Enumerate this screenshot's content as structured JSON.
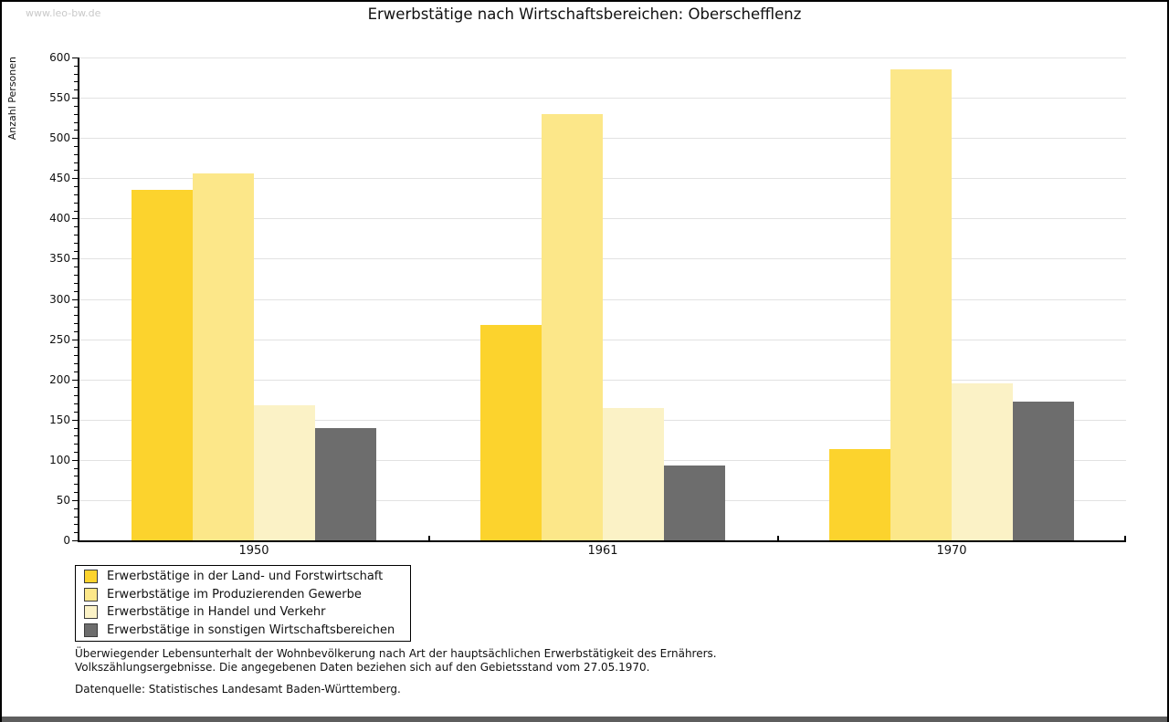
{
  "watermark": "www.leo-bw.de",
  "title": "Erwerbstätige nach Wirtschaftsbereichen: Oberschefflenz",
  "chart_data": {
    "type": "bar",
    "title": "Erwerbstätige nach Wirtschaftsbereichen: Oberschefflenz",
    "xlabel": "",
    "ylabel": "Anzahl Personen",
    "ylim": [
      0,
      600
    ],
    "ytick_step": 50,
    "minor_tick_step": 10,
    "grid": true,
    "legend_position": "bottom-left",
    "categories": [
      "1950",
      "1961",
      "1970"
    ],
    "series": [
      {
        "name": "Erwerbstätige in der Land- und Forstwirtschaft",
        "color": "#fcd32d",
        "values": [
          435,
          268,
          113
        ]
      },
      {
        "name": "Erwerbstätige im Produzierenden Gewerbe",
        "color": "#fce789",
        "values": [
          456,
          530,
          585
        ]
      },
      {
        "name": "Erwerbstätige in Handel und Verkehr",
        "color": "#fbf2c6",
        "values": [
          168,
          164,
          195
        ]
      },
      {
        "name": "Erwerbstätige in sonstigen Wirtschaftsbereichen",
        "color": "#6d6d6d",
        "values": [
          139,
          93,
          172
        ]
      }
    ]
  },
  "footnotes": {
    "line1": "Überwiegender Lebensunterhalt der Wohnbevölkerung nach Art der hauptsächlichen Erwerbstätigkeit des Ernährers.",
    "line2": "Volkszählungsergebnisse. Die angegebenen Daten beziehen sich auf den Gebietsstand vom 27.05.1970."
  },
  "source": "Datenquelle: Statistisches Landesamt Baden-Württemberg.",
  "colors": {
    "gridline": "#e2e2e2",
    "axis": "#000000",
    "watermark": "#c9c9c9",
    "frame_bottom": "#5e5e5e"
  }
}
